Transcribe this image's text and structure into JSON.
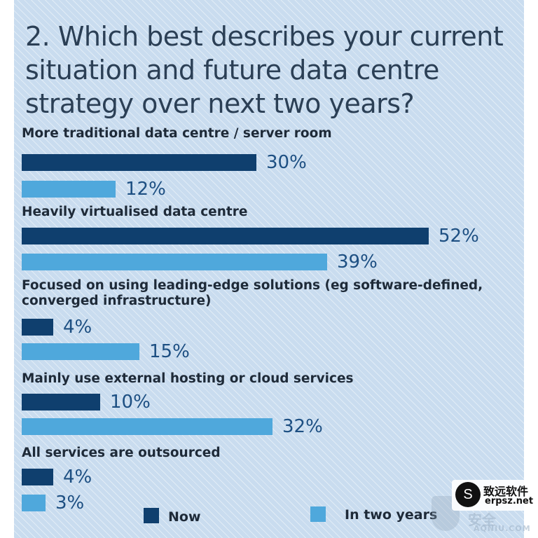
{
  "chart_data": {
    "type": "bar",
    "orientation": "horizontal",
    "title": "2. Which best describes your current situation and future data centre strategy over next two years?",
    "unit": "%",
    "xlim": [
      0,
      52
    ],
    "categories": [
      "More traditional data centre / server room",
      "Heavily virtualised data centre",
      "Focused on using leading-edge solutions (eg software-defined, converged infrastructure)",
      "Mainly use external hosting or cloud services",
      "All services are outsourced"
    ],
    "series": [
      {
        "name": "Now",
        "color": "#0f3f6e",
        "values": [
          30,
          52,
          4,
          10,
          4
        ],
        "labels": [
          "30%",
          "52%",
          "4%",
          "10%",
          "4%"
        ]
      },
      {
        "name": "In two years",
        "color": "#4fa8dc",
        "values": [
          12,
          39,
          15,
          32,
          3
        ],
        "labels": [
          "12%",
          "39%",
          "15%",
          "32%",
          "3%"
        ]
      }
    ],
    "legend": {
      "position": "bottom",
      "items": [
        "Now",
        "In two years"
      ]
    },
    "grid": false
  },
  "watermarks": {
    "logo_glyph": "S",
    "brand_cn": "致远软件",
    "brand_url": "erpsz.net",
    "overlay_cn": "安全",
    "overlay_en": "AQNIU.COM"
  }
}
